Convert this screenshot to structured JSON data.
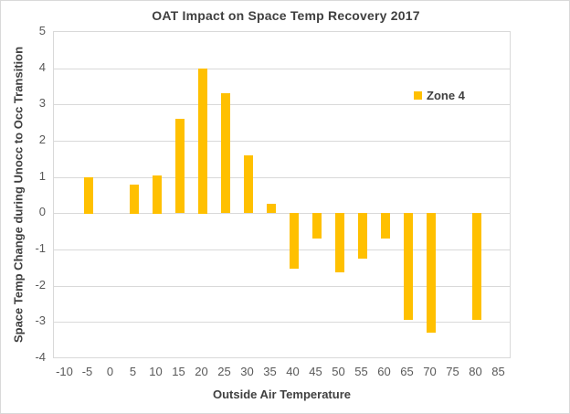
{
  "chart_data": {
    "type": "bar",
    "title": "OAT Impact on Space Temp Recovery 2017",
    "xlabel": "Outside Air Temperature",
    "ylabel": "Space Temp Change during Unocc to Occ Transition",
    "categories": [
      -10,
      -5,
      0,
      5,
      10,
      15,
      20,
      25,
      30,
      35,
      40,
      45,
      50,
      55,
      60,
      65,
      70,
      75,
      80,
      85
    ],
    "series": [
      {
        "name": "Zone 4",
        "color": "#FFC000",
        "values": [
          null,
          1.0,
          null,
          0.8,
          1.05,
          2.6,
          4.0,
          3.3,
          1.6,
          0.25,
          -1.55,
          -0.7,
          -1.65,
          -1.25,
          -0.7,
          -2.95,
          -3.3,
          null,
          -2.95,
          null
        ]
      }
    ],
    "ylim": [
      -4,
      5
    ],
    "ytick_step": 1,
    "grid": true,
    "legend_position": "inside-top-right",
    "colors": {
      "bar": "#FFC000",
      "gridline": "#D9D9D9",
      "plot_border": "#D9D9D9",
      "title_text": "#404040",
      "tick_text": "#595959"
    }
  }
}
